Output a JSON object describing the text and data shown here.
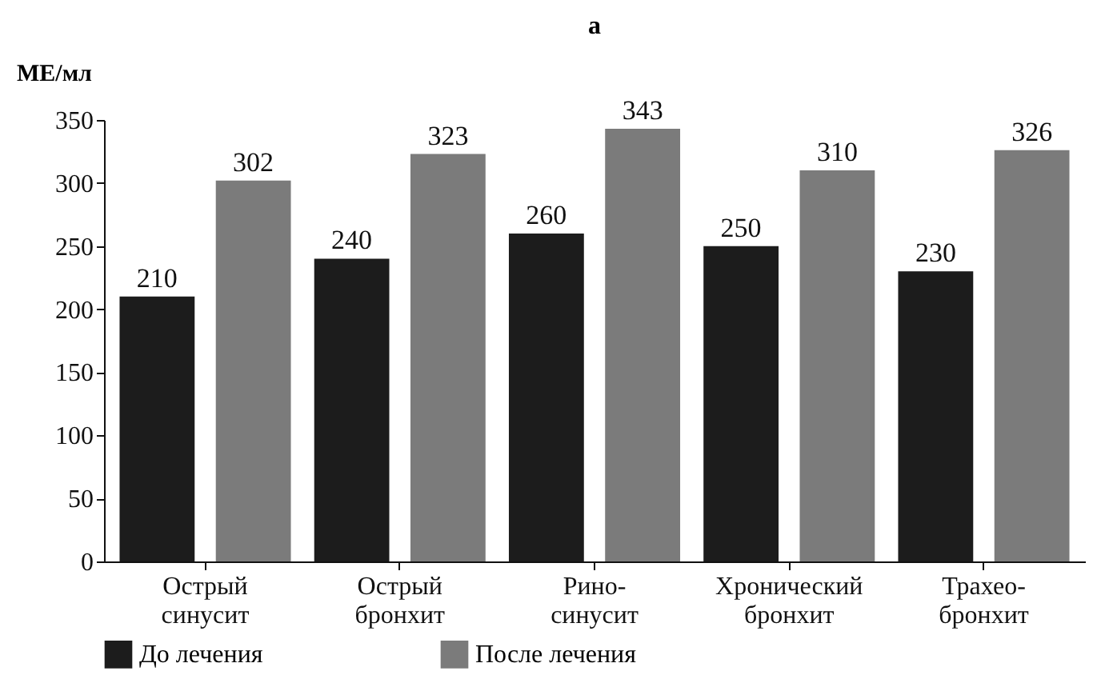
{
  "chart_data": {
    "type": "bar",
    "title": "а",
    "ylabel": "МЕ/мл",
    "categories": [
      "Острый\nсинусит",
      "Острый\nбронхит",
      "Рино-\nсинусит",
      "Хронический\nбронхит",
      "Трахео-\nбронхит"
    ],
    "series": [
      {
        "name": "До лечения",
        "color": "#1c1c1c",
        "values": [
          210,
          240,
          260,
          250,
          230
        ]
      },
      {
        "name": "После лечения",
        "color": "#7b7b7b",
        "values": [
          302,
          323,
          343,
          310,
          326
        ]
      }
    ],
    "ylim": [
      0,
      350
    ],
    "yticks": [
      0,
      50,
      100,
      150,
      200,
      250,
      300,
      350
    ],
    "grid": false,
    "legend": "bottom",
    "data_labels": true
  }
}
